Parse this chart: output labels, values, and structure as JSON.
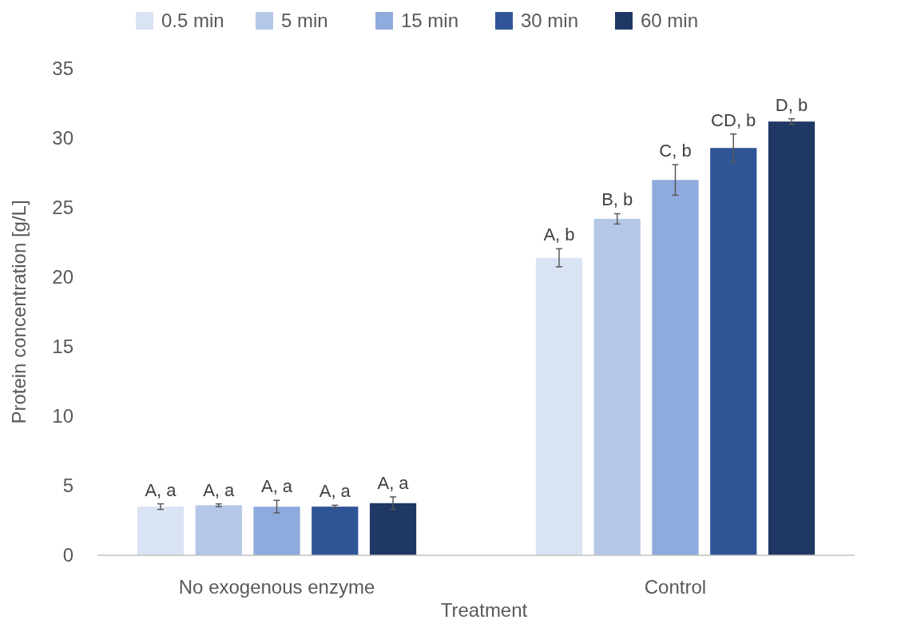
{
  "chart_data": {
    "type": "bar",
    "xlabel": "Treatment",
    "ylabel": "Protein concentration [g/L]",
    "categories": [
      "No exogenous enzyme",
      "Control"
    ],
    "ylim": [
      0,
      35
    ],
    "yticks": [
      0,
      5,
      10,
      15,
      20,
      25,
      30,
      35
    ],
    "grid": false,
    "legend": "top",
    "series": [
      {
        "name": "0.5 min",
        "color": "#dae3f3",
        "values": [
          3.5,
          21.4
        ],
        "errors": [
          0.2,
          0.65
        ],
        "value_labels": [
          "A, a",
          "A, b"
        ]
      },
      {
        "name": "5 min",
        "color": "#b4c7e7",
        "values": [
          3.6,
          24.2
        ],
        "errors": [
          0.1,
          0.37
        ],
        "value_labels": [
          "A, a",
          "B, b"
        ]
      },
      {
        "name": "15 min",
        "color": "#8faadc",
        "values": [
          3.5,
          27.0
        ],
        "errors": [
          0.45,
          1.1
        ],
        "value_labels": [
          "A, a",
          "C, b"
        ]
      },
      {
        "name": "30 min",
        "color": "#2f5597",
        "values": [
          3.5,
          29.3
        ],
        "errors": [
          0.1,
          1.0
        ],
        "value_labels": [
          "A, a",
          "CD, b"
        ]
      },
      {
        "name": "60 min",
        "color": "#203864",
        "values": [
          3.75,
          31.2
        ],
        "errors": [
          0.45,
          0.2
        ],
        "value_labels": [
          "A, a",
          "D, b"
        ]
      }
    ]
  }
}
